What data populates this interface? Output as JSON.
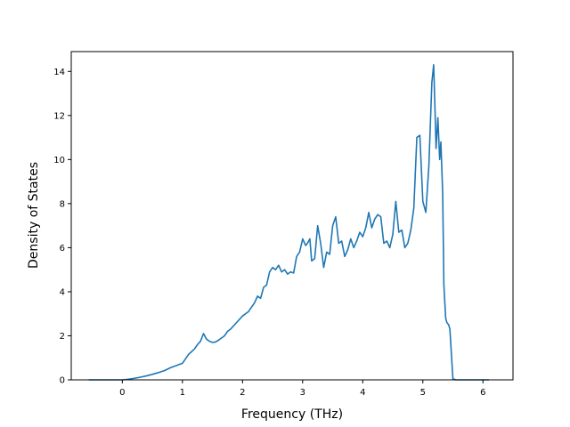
{
  "chart_data": {
    "type": "line",
    "title": "",
    "xlabel": "Frequency (THz)",
    "ylabel": "Density of States",
    "xlim": [
      -0.85,
      6.5
    ],
    "ylim": [
      0,
      14.9
    ],
    "xticks": [
      0,
      1,
      2,
      3,
      4,
      5,
      6
    ],
    "yticks": [
      0,
      2,
      4,
      6,
      8,
      10,
      12,
      14
    ],
    "grid": false,
    "legend": "none",
    "series": [
      {
        "color": "#1f77b4",
        "x": [
          -0.56,
          0.0,
          0.1,
          0.2,
          0.3,
          0.4,
          0.5,
          0.6,
          0.7,
          0.8,
          0.9,
          1.0,
          1.1,
          1.2,
          1.25,
          1.3,
          1.35,
          1.4,
          1.45,
          1.48,
          1.5,
          1.55,
          1.6,
          1.7,
          1.75,
          1.8,
          1.9,
          2.0,
          2.1,
          2.2,
          2.25,
          2.3,
          2.35,
          2.4,
          2.45,
          2.5,
          2.55,
          2.6,
          2.65,
          2.7,
          2.75,
          2.8,
          2.85,
          2.9,
          2.95,
          3.0,
          3.05,
          3.08,
          3.12,
          3.15,
          3.2,
          3.25,
          3.3,
          3.35,
          3.4,
          3.45,
          3.5,
          3.55,
          3.6,
          3.65,
          3.7,
          3.75,
          3.8,
          3.85,
          3.9,
          3.95,
          4.0,
          4.05,
          4.1,
          4.15,
          4.2,
          4.25,
          4.3,
          4.35,
          4.4,
          4.45,
          4.5,
          4.55,
          4.6,
          4.65,
          4.7,
          4.75,
          4.8,
          4.85,
          4.9,
          4.95,
          5.0,
          5.05,
          5.1,
          5.15,
          5.18,
          5.2,
          5.22,
          5.25,
          5.28,
          5.3,
          5.33,
          5.35,
          5.38,
          5.4,
          5.43,
          5.45,
          5.5,
          5.55,
          5.6,
          6.1
        ],
        "y": [
          0.0,
          0.0,
          0.03,
          0.07,
          0.12,
          0.18,
          0.25,
          0.33,
          0.42,
          0.55,
          0.65,
          0.75,
          1.15,
          1.4,
          1.6,
          1.75,
          2.1,
          1.85,
          1.75,
          1.72,
          1.7,
          1.72,
          1.8,
          2.0,
          2.2,
          2.3,
          2.6,
          2.9,
          3.1,
          3.5,
          3.8,
          3.7,
          4.2,
          4.3,
          4.9,
          5.1,
          5.0,
          5.2,
          4.9,
          5.0,
          4.8,
          4.9,
          4.85,
          5.6,
          5.8,
          6.4,
          6.1,
          6.2,
          6.4,
          5.4,
          5.5,
          7.0,
          6.2,
          5.1,
          5.8,
          5.7,
          7.0,
          7.4,
          6.2,
          6.3,
          5.6,
          5.9,
          6.4,
          6.0,
          6.3,
          6.7,
          6.5,
          6.9,
          7.6,
          6.9,
          7.3,
          7.5,
          7.4,
          6.2,
          6.3,
          6.0,
          6.6,
          8.1,
          6.7,
          6.8,
          6.0,
          6.2,
          6.8,
          7.8,
          11.0,
          11.1,
          8.1,
          7.6,
          9.7,
          13.5,
          14.3,
          12.5,
          10.5,
          11.9,
          10.0,
          10.8,
          8.5,
          4.3,
          2.8,
          2.6,
          2.5,
          2.3,
          0.05,
          0.0,
          0.0,
          0.0
        ]
      }
    ]
  }
}
